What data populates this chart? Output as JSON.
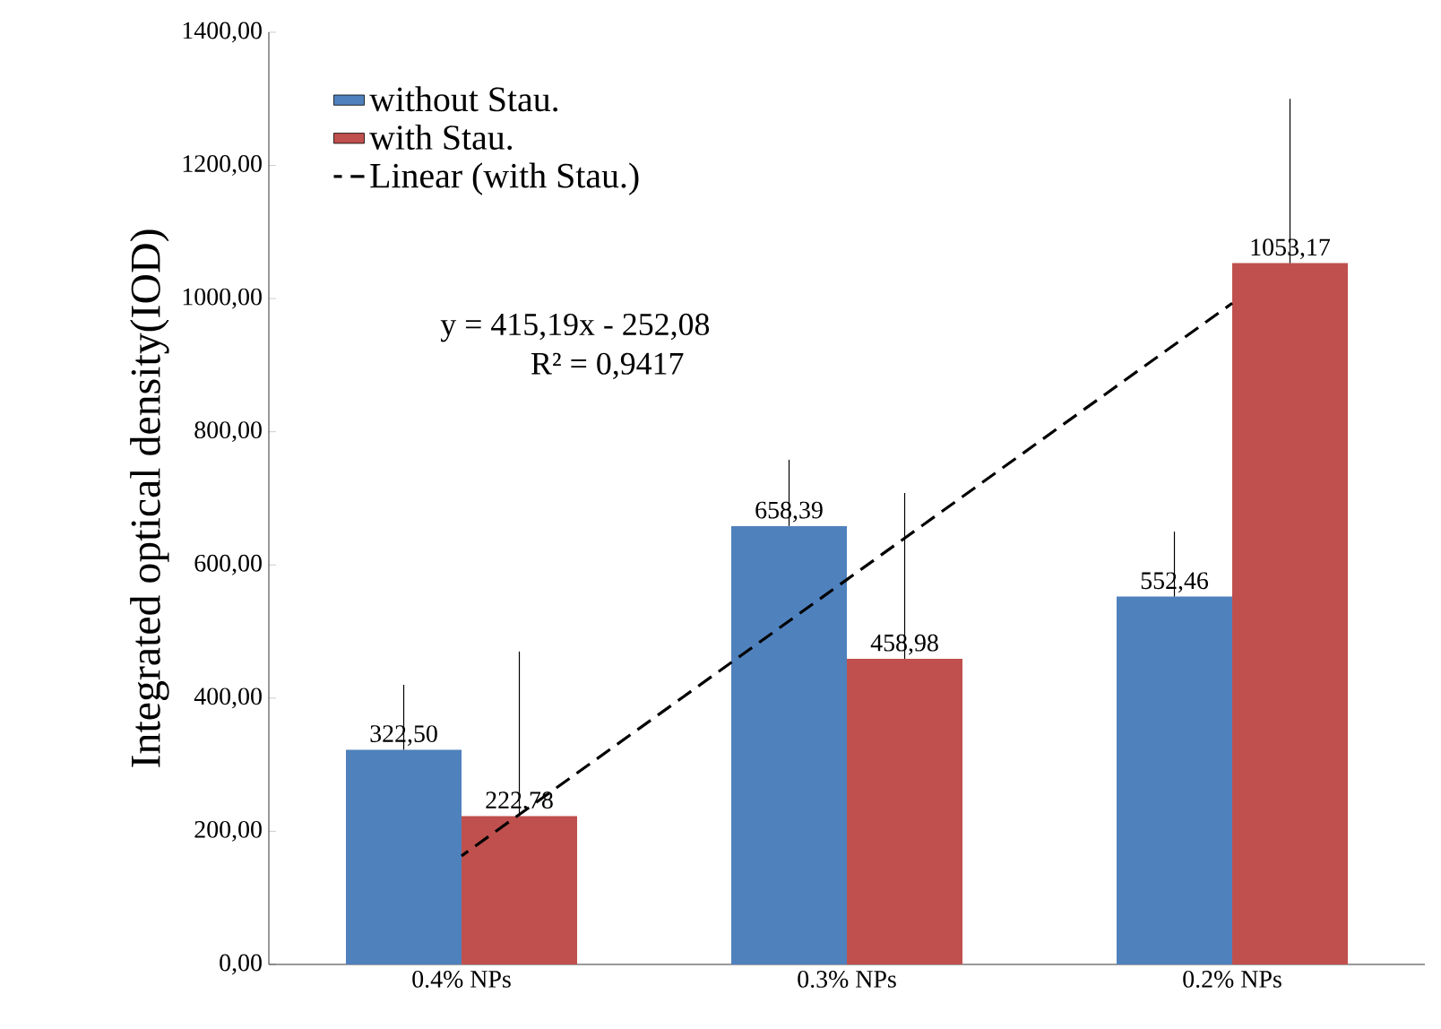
{
  "chart_data": {
    "type": "bar",
    "ylabel": "Integrated optical density(IOD)",
    "categories": [
      "0.4% NPs",
      "0.3% NPs",
      "0.2% NPs"
    ],
    "series": [
      {
        "name": "without Stau.",
        "color": "#4f81bd",
        "values": [
          322.5,
          658.39,
          552.46
        ],
        "value_labels": [
          "322,50",
          "658,39",
          "552,46"
        ],
        "errors": [
          [
            322.5,
            420
          ],
          [
            658.39,
            758
          ],
          [
            552.46,
            650
          ]
        ]
      },
      {
        "name": "with Stau.",
        "color": "#c0504d",
        "values": [
          222.78,
          458.98,
          1053.17
        ],
        "value_labels": [
          "222,78",
          "458,98",
          "1053,17"
        ],
        "errors": [
          [
            222.78,
            470
          ],
          [
            458.98,
            708
          ],
          [
            1053.17,
            1300
          ]
        ]
      },
      {
        "name": "Linear (with Stau.)",
        "type": "line",
        "color": "#000000",
        "line_style": "dashed",
        "marker": "none",
        "values": [
          163,
          578,
          993
        ]
      }
    ],
    "ylim": [
      0,
      1400
    ],
    "yticks": [
      {
        "value": 0,
        "label": "0,00"
      },
      {
        "value": 200,
        "label": "200,00"
      },
      {
        "value": 400,
        "label": "400,00"
      },
      {
        "value": 600,
        "label": "600,00"
      },
      {
        "value": 800,
        "label": "800,00"
      },
      {
        "value": 1000,
        "label": "1000,00"
      },
      {
        "value": 1200,
        "label": "1200,00"
      },
      {
        "value": 1400,
        "label": "1400,00"
      }
    ],
    "annotations": [
      "y = 415,19x  - 252,08",
      "R² = 0,9417"
    ],
    "legend": "top left",
    "grid": false
  }
}
